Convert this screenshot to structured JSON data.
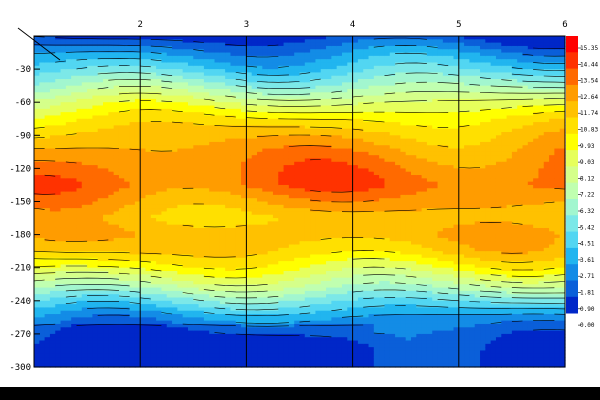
{
  "chart_data": {
    "type": "heatmap",
    "title": "",
    "xlabel": "",
    "ylabel": "",
    "x_ticks": [
      2,
      3,
      4,
      5,
      6
    ],
    "xlim": [
      1,
      6
    ],
    "y_ticks": [
      -30,
      -60,
      -90,
      -120,
      -150,
      -180,
      -210,
      -240,
      -270,
      -300
    ],
    "ylim": [
      -300,
      0
    ],
    "grid": true,
    "colorbar": {
      "placement": "right",
      "labels": [
        "15.35",
        "14.44",
        "13.54",
        "12.64",
        "11.74",
        "10.83",
        "9.93",
        "9.03",
        "8.12",
        "7.22",
        "6.32",
        "5.42",
        "4.51",
        "3.61",
        "2.71",
        "1.81",
        "0.90",
        "0.00"
      ],
      "colors": [
        "#ff0000",
        "#ff3200",
        "#ff6a00",
        "#ff9c00",
        "#ffc100",
        "#ffe000",
        "#ffff00",
        "#e6ff5c",
        "#d5ff8a",
        "#c0ffb0",
        "#a2f6cf",
        "#7ce8e8",
        "#52d6f2",
        "#21b5ef",
        "#138ce6",
        "#0a5fd9",
        "#0027c8"
      ]
    },
    "depth_profile": {
      "depth": [
        0,
        -15,
        -30,
        -45,
        -60,
        -75,
        -90,
        -105,
        -120,
        -135,
        -150,
        -165,
        -180,
        -195,
        -210,
        -225,
        -240,
        -255,
        -270,
        -285,
        -300
      ],
      "value": [
        0.6,
        2.4,
        4.0,
        6.0,
        8.2,
        10.0,
        11.3,
        12.2,
        12.8,
        13.1,
        12.0,
        11.0,
        11.5,
        10.8,
        9.2,
        7.2,
        4.8,
        2.6,
        1.4,
        0.8,
        0.4
      ]
    }
  }
}
